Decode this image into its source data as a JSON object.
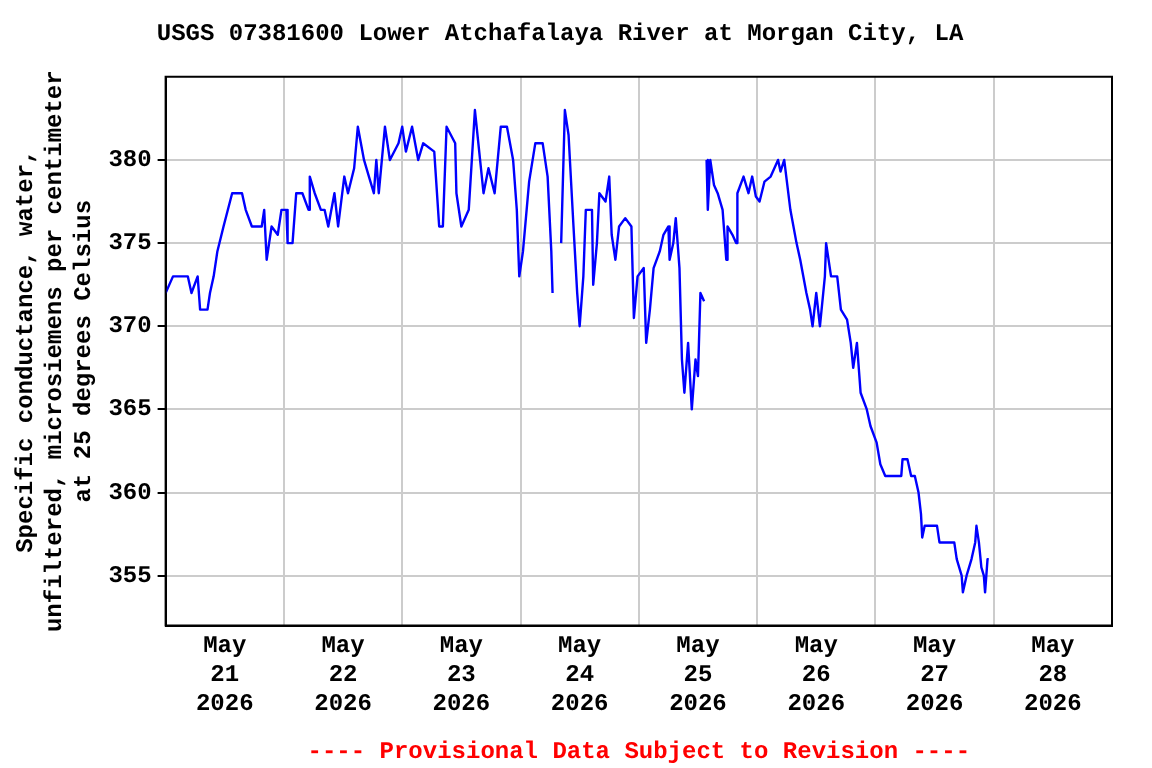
{
  "chart_data": {
    "type": "line",
    "title": "USGS 07381600 Lower Atchafalaya River at Morgan City, LA",
    "ylabel": "Specific conductance, water, unfiltered, microsiemens per centimeter at 25 degrees Celsius",
    "annotations": [
      "---- Provisional Data Subject to Revision ----"
    ],
    "x": [
      "2026-05-21T00:00",
      "2026-05-21T01:30",
      "2026-05-21T04:30",
      "2026-05-21T05:15",
      "2026-05-21T06:30",
      "2026-05-21T07:00",
      "2026-05-21T08:30",
      "2026-05-21T09:00",
      "2026-05-21T09:45",
      "2026-05-21T10:30",
      "2026-05-21T11:45",
      "2026-05-21T13:30",
      "2026-05-21T15:30",
      "2026-05-21T16:15",
      "2026-05-21T17:30",
      "2026-05-21T19:30",
      "2026-05-21T20:00",
      "2026-05-21T20:30",
      "2026-05-21T21:30",
      "2026-05-21T22:45",
      "2026-05-21T23:30",
      "2026-05-22T00:30",
      "2026-05-22T00:45",
      "2026-05-22T01:45",
      "2026-05-22T02:30",
      "2026-05-22T03:45",
      "2026-05-22T05:00",
      "2026-05-22T05:15",
      "2026-05-22T06:15",
      "2026-05-22T07:30",
      "2026-05-22T08:15",
      "2026-05-22T09:00",
      "2026-05-22T10:15",
      "2026-05-22T11:00",
      "2026-05-22T12:15",
      "2026-05-22T13:00",
      "2026-05-22T14:15",
      "2026-05-22T15:00",
      "2026-05-22T16:15",
      "2026-05-22T17:15",
      "2026-05-22T18:15",
      "2026-05-22T18:45",
      "2026-05-22T19:15",
      "2026-05-22T20:30",
      "2026-05-22T21:30",
      "2026-05-22T23:15",
      "2026-05-23T00:00",
      "2026-05-23T00:45",
      "2026-05-23T02:00",
      "2026-05-23T03:15",
      "2026-05-23T04:15",
      "2026-05-23T06:30",
      "2026-05-23T07:30",
      "2026-05-23T08:15",
      "2026-05-23T09:00",
      "2026-05-23T10:45",
      "2026-05-23T11:00",
      "2026-05-23T12:00",
      "2026-05-23T13:30",
      "2026-05-23T14:45",
      "2026-05-23T16:30",
      "2026-05-23T17:30",
      "2026-05-23T18:45",
      "2026-05-23T20:00",
      "2026-05-23T21:15",
      "2026-05-23T22:30",
      "2026-05-23T23:15",
      "2026-05-23T23:45",
      "2026-05-24T00:30",
      "2026-05-24T01:45",
      "2026-05-24T03:00",
      "2026-05-24T04:30",
      "2026-05-24T05:30",
      "2026-05-24T06:15",
      "2026-05-24T06:30",
      "2026-05-24T07:30",
      "2026-05-24T08:15",
      "2026-05-24T09:00",
      "2026-05-24T09:45",
      "2026-05-24T10:45",
      "2026-05-24T11:30",
      "2026-05-24T12:00",
      "2026-05-24T12:45",
      "2026-05-24T13:15",
      "2026-05-24T14:30",
      "2026-05-24T14:45",
      "2026-05-24T15:30",
      "2026-05-24T16:00",
      "2026-05-24T17:15",
      "2026-05-24T18:00",
      "2026-05-24T18:30",
      "2026-05-24T19:15",
      "2026-05-24T20:00",
      "2026-05-24T21:15",
      "2026-05-24T22:30",
      "2026-05-24T23:00",
      "2026-05-24T23:45",
      "2026-05-25T01:00",
      "2026-05-25T01:30",
      "2026-05-25T02:15",
      "2026-05-25T03:00",
      "2026-05-25T04:15",
      "2026-05-25T05:00",
      "2026-05-25T06:00",
      "2026-05-25T06:15",
      "2026-05-25T07:00",
      "2026-05-25T07:30",
      "2026-05-25T08:15",
      "2026-05-25T08:45",
      "2026-05-25T09:15",
      "2026-05-25T10:00",
      "2026-05-25T10:45",
      "2026-05-25T11:30",
      "2026-05-25T12:00",
      "2026-05-25T12:30",
      "2026-05-25T13:15",
      "2026-05-25T13:30",
      "2026-05-25T13:45",
      "2026-05-25T14:00",
      "2026-05-25T14:30",
      "2026-05-25T15:15",
      "2026-05-25T16:00",
      "2026-05-25T17:00",
      "2026-05-25T17:45",
      "2026-05-25T18:00",
      "2026-05-25T19:00",
      "2026-05-25T19:45",
      "2026-05-25T20:00",
      "2026-05-25T21:15",
      "2026-05-25T22:15",
      "2026-05-25T23:00",
      "2026-05-25T23:45",
      "2026-05-26T00:30",
      "2026-05-26T01:30",
      "2026-05-26T02:45",
      "2026-05-26T04:15",
      "2026-05-26T04:45",
      "2026-05-26T05:30",
      "2026-05-26T06:45",
      "2026-05-26T08:00",
      "2026-05-26T08:45",
      "2026-05-26T10:00",
      "2026-05-26T10:45",
      "2026-05-26T11:15",
      "2026-05-26T12:00",
      "2026-05-26T12:45",
      "2026-05-26T13:45",
      "2026-05-26T14:00",
      "2026-05-26T15:00",
      "2026-05-26T16:15",
      "2026-05-26T17:00",
      "2026-05-26T18:15",
      "2026-05-26T19:00",
      "2026-05-26T19:30",
      "2026-05-26T20:15",
      "2026-05-26T21:00",
      "2026-05-26T22:15",
      "2026-05-26T23:00",
      "2026-05-27T00:15",
      "2026-05-27T01:00",
      "2026-05-27T02:00",
      "2026-05-27T05:15",
      "2026-05-27T05:30",
      "2026-05-27T06:30",
      "2026-05-27T07:15",
      "2026-05-27T08:00",
      "2026-05-27T08:45",
      "2026-05-27T09:15",
      "2026-05-27T09:30",
      "2026-05-27T10:00",
      "2026-05-27T12:30",
      "2026-05-27T13:00",
      "2026-05-27T16:00",
      "2026-05-27T16:30",
      "2026-05-27T17:30",
      "2026-05-27T17:45",
      "2026-05-27T18:30",
      "2026-05-27T19:30",
      "2026-05-27T20:15",
      "2026-05-27T20:30",
      "2026-05-27T21:00",
      "2026-05-27T21:30",
      "2026-05-27T22:00",
      "2026-05-27T22:15",
      "2026-05-27T22:45",
      "2026-05-27T23:00"
    ],
    "series": [
      {
        "color": "#0000ff",
        "values": [
          372,
          373,
          373,
          372,
          373,
          371,
          371,
          372,
          373,
          374.5,
          376,
          378,
          378,
          377,
          376,
          376,
          377,
          374,
          376,
          375.5,
          377,
          377,
          375,
          375,
          378,
          378,
          377,
          379,
          378,
          377,
          377,
          376,
          378,
          376,
          379,
          378,
          379.5,
          382,
          380,
          379,
          378,
          380,
          378,
          382,
          380,
          381,
          382,
          380.5,
          382,
          380,
          381,
          380.5,
          376,
          376,
          382,
          381,
          378,
          376,
          377,
          383,
          378,
          379.5,
          378,
          382,
          382,
          380,
          377,
          373,
          374.5,
          378.7,
          381,
          381,
          379,
          374.5,
          372,
          null,
          375,
          383,
          381.5,
          376,
          372,
          370,
          373,
          377,
          377,
          372.5,
          375,
          378,
          377.5,
          379,
          375.5,
          374,
          376,
          376.5,
          376,
          370.5,
          373,
          373.5,
          369,
          371,
          373.5,
          374.5,
          375.5,
          376,
          374,
          375,
          376.5,
          373.5,
          368,
          366,
          369,
          365,
          368,
          367,
          372,
          371.5,
          null,
          380,
          377,
          380,
          378.5,
          378,
          377,
          374,
          376,
          375.5,
          375,
          378,
          379,
          378,
          379,
          377.8,
          377.5,
          378.7,
          379,
          380,
          379.3,
          380,
          377,
          375,
          374,
          372,
          371,
          370,
          372,
          370,
          373,
          375,
          373,
          373,
          371,
          370.4,
          369,
          367.5,
          369,
          366,
          365,
          364,
          363,
          361.7,
          361,
          361,
          362,
          362,
          361,
          361,
          360,
          358.7,
          357.3,
          358,
          358,
          357,
          357,
          356,
          355,
          354,
          355,
          356,
          357,
          358,
          357,
          355.5,
          355,
          354,
          356,
          356
        ]
      }
    ],
    "xlim": [
      "2026-05-21T00:00",
      "2026-05-29T00:00"
    ],
    "xticks": [
      {
        "value": "2026-05-21T00:00",
        "label": null
      },
      {
        "value": "2026-05-21T12:00",
        "label": "May 21 2026"
      },
      {
        "value": "2026-05-22T00:00",
        "label": null
      },
      {
        "value": "2026-05-22T12:00",
        "label": "May 22 2026"
      },
      {
        "value": "2026-05-23T00:00",
        "label": null
      },
      {
        "value": "2026-05-23T12:00",
        "label": "May 23 2026"
      },
      {
        "value": "2026-05-24T00:00",
        "label": null
      },
      {
        "value": "2026-05-24T12:00",
        "label": "May 24 2026"
      },
      {
        "value": "2026-05-25T00:00",
        "label": null
      },
      {
        "value": "2026-05-25T12:00",
        "label": "May 25 2026"
      },
      {
        "value": "2026-05-26T00:00",
        "label": null
      },
      {
        "value": "2026-05-26T12:00",
        "label": "May 26 2026"
      },
      {
        "value": "2026-05-27T00:00",
        "label": null
      },
      {
        "value": "2026-05-27T12:00",
        "label": "May 27 2026"
      },
      {
        "value": "2026-05-28T00:00",
        "label": null
      },
      {
        "value": "2026-05-28T12:00",
        "label": "May 28 2026"
      },
      {
        "value": "2026-05-29T00:00",
        "label": null
      }
    ],
    "ylim": [
      352,
      385
    ],
    "yticks": [
      355,
      360,
      365,
      370,
      375,
      380
    ],
    "grid": true,
    "marker": "none",
    "line_style": "solid"
  }
}
